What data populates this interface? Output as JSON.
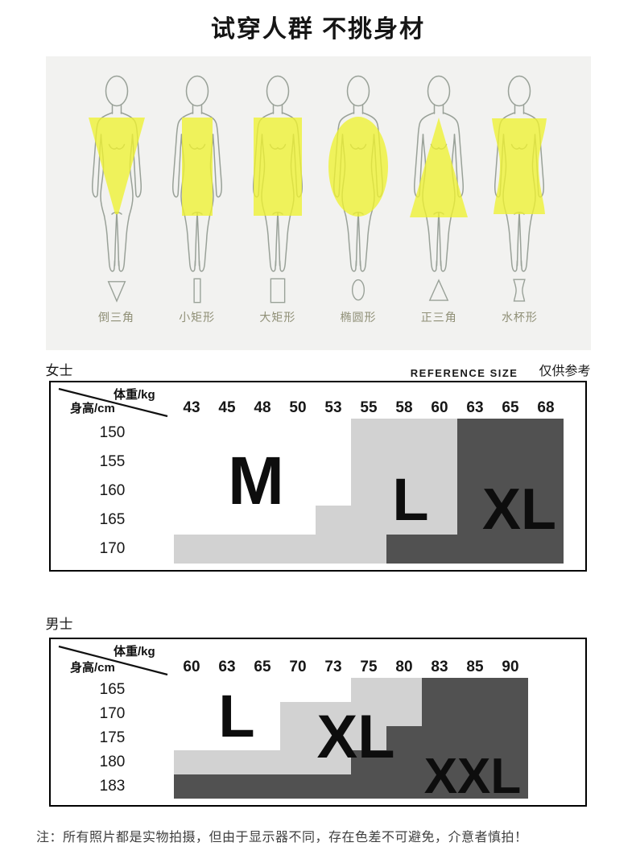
{
  "title": "试穿人群 不挑身材",
  "figures": {
    "items": [
      {
        "label": "倒三角",
        "shape": "inverted-triangle"
      },
      {
        "label": "小矩形",
        "shape": "small-rectangle"
      },
      {
        "label": "大矩形",
        "shape": "large-rectangle"
      },
      {
        "label": "椭圆形",
        "shape": "oval"
      },
      {
        "label": "正三角",
        "shape": "triangle"
      },
      {
        "label": "水杯形",
        "shape": "water-cup"
      }
    ],
    "highlight_color": "#eef231",
    "outline_color": "#99a198"
  },
  "sections": {
    "women_label": "女士",
    "men_label": "男士",
    "reference_label": "REFERENCE SIZE",
    "reference_note": "仅供参考"
  },
  "note": "注：所有照片都是实物拍摄，但由于显示器不同，存在色差不可避免，介意者慎拍！",
  "chart_data": [
    {
      "type": "heatmap",
      "title": "女士",
      "xlabel": "体重/kg",
      "ylabel": "身高/cm",
      "x": [
        43,
        45,
        48,
        50,
        53,
        55,
        58,
        60,
        63,
        65,
        68
      ],
      "y": [
        150,
        155,
        160,
        165,
        170
      ],
      "sizes": [
        "M",
        "L",
        "XL"
      ],
      "palette": {
        "M": "#ffffff",
        "L": "#d2d2d2",
        "XL": "#515151"
      },
      "matrix": [
        [
          "M",
          "M",
          "M",
          "M",
          "M",
          "L",
          "L",
          "L",
          "XL",
          "XL",
          "XL"
        ],
        [
          "M",
          "M",
          "M",
          "M",
          "M",
          "L",
          "L",
          "L",
          "XL",
          "XL",
          "XL"
        ],
        [
          "M",
          "M",
          "M",
          "M",
          "M",
          "L",
          "L",
          "L",
          "XL",
          "XL",
          "XL"
        ],
        [
          "M",
          "M",
          "M",
          "M",
          "L",
          "L",
          "L",
          "L",
          "XL",
          "XL",
          "XL"
        ],
        [
          "L",
          "L",
          "L",
          "L",
          "L",
          "L",
          "XL",
          "XL",
          "XL",
          "XL",
          "XL"
        ]
      ]
    },
    {
      "type": "heatmap",
      "title": "男士",
      "xlabel": "体重/kg",
      "ylabel": "身高/cm",
      "x": [
        60,
        63,
        65,
        70,
        73,
        75,
        80,
        83,
        85,
        90
      ],
      "y": [
        165,
        170,
        175,
        180,
        183
      ],
      "sizes": [
        "L",
        "XL",
        "XXL"
      ],
      "palette": {
        "L": "#ffffff",
        "XL": "#d2d2d2",
        "XXL": "#515151"
      },
      "matrix": [
        [
          "L",
          "L",
          "L",
          "L",
          "L",
          "XL",
          "XL",
          "XXL",
          "XXL",
          "XXL"
        ],
        [
          "L",
          "L",
          "L",
          "XL",
          "XL",
          "XL",
          "XL",
          "XXL",
          "XXL",
          "XXL"
        ],
        [
          "L",
          "L",
          "L",
          "XL",
          "XL",
          "XL",
          "XXL",
          "XXL",
          "XXL",
          "XXL"
        ],
        [
          "XL",
          "XL",
          "XL",
          "XL",
          "XL",
          "XXL",
          "XXL",
          "XXL",
          "XXL",
          "XXL"
        ],
        [
          "XXL",
          "XXL",
          "XXL",
          "XXL",
          "XXL",
          "XXL",
          "XXL",
          "XXL",
          "XXL",
          "XXL"
        ]
      ]
    }
  ]
}
